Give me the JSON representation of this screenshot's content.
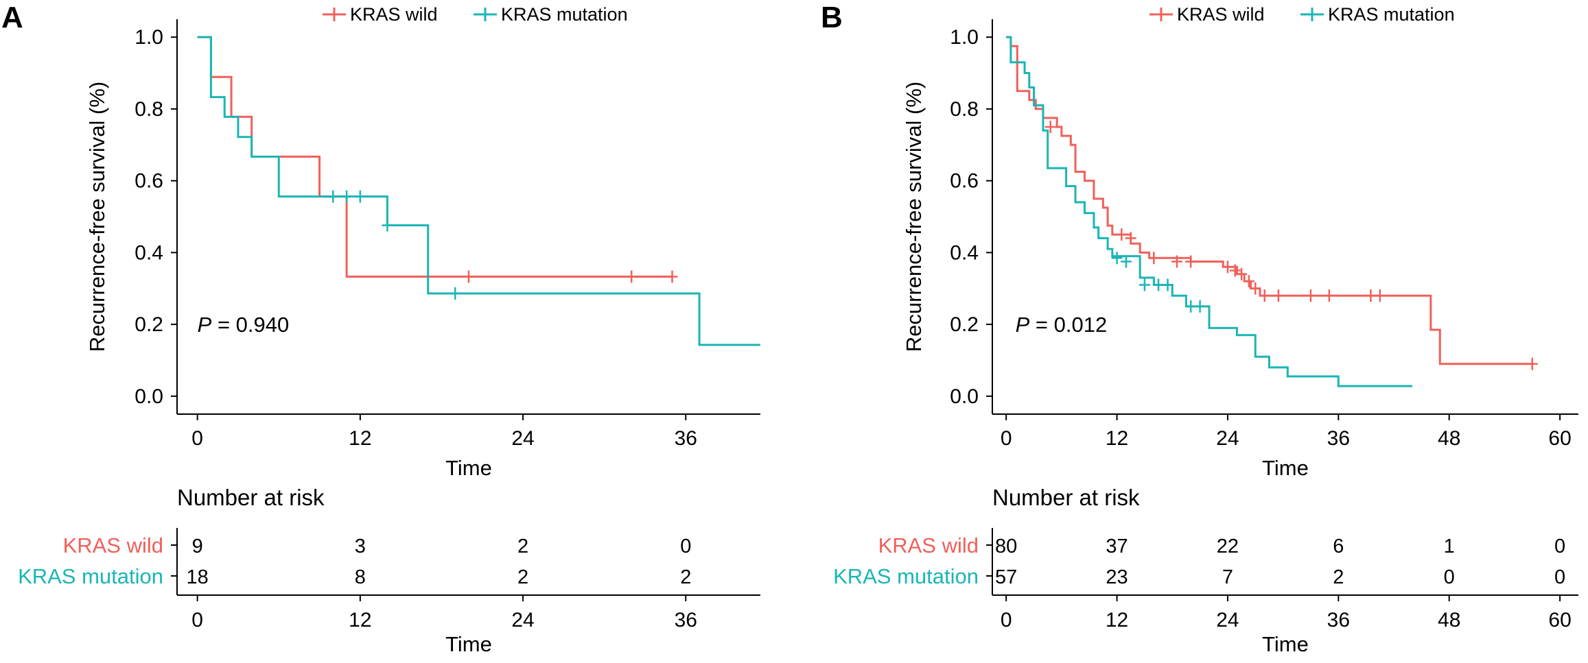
{
  "chart_data": [
    {
      "panel_label": "A",
      "type": "line",
      "subtype": "kaplan-meier",
      "legend": [
        "KRAS wild",
        "KRAS mutation"
      ],
      "xlabel": "Time",
      "ylabel": "Recurrence-free survival (%)",
      "xlim": [
        -1.5,
        41.5
      ],
      "ylim": [
        -0.05,
        1.05
      ],
      "xticks": [
        0,
        12,
        24,
        36
      ],
      "yticks": [
        0.0,
        0.2,
        0.4,
        0.6,
        0.8,
        1.0
      ],
      "ytick_labels": [
        "0.0",
        "0.2",
        "0.4",
        "0.6",
        "0.8",
        "1.0"
      ],
      "pvalue_label": "P",
      "pvalue_text": " = 0.940",
      "pvalue_at": [
        0,
        0.2
      ],
      "series": [
        {
          "name": "KRAS wild",
          "color": "#f0605a",
          "end_x": 35,
          "steps": [
            [
              0,
              1.0
            ],
            [
              1,
              0.889
            ],
            [
              2.5,
              0.778
            ],
            [
              4,
              0.667
            ],
            [
              9,
              0.556
            ],
            [
              11,
              0.333
            ]
          ],
          "censor": [
            [
              20,
              0.333
            ],
            [
              32,
              0.333
            ],
            [
              35,
              0.333
            ]
          ]
        },
        {
          "name": "KRAS mutation",
          "color": "#1ab5b5",
          "end_x": 41.5,
          "steps": [
            [
              0,
              1.0
            ],
            [
              1,
              0.833
            ],
            [
              2,
              0.778
            ],
            [
              3,
              0.722
            ],
            [
              4,
              0.667
            ],
            [
              6,
              0.556
            ],
            [
              14,
              0.476
            ],
            [
              17,
              0.286
            ],
            [
              37,
              0.143
            ]
          ],
          "censor": [
            [
              10,
              0.556
            ],
            [
              11,
              0.556
            ],
            [
              12,
              0.556
            ],
            [
              14,
              0.476
            ],
            [
              19,
              0.286
            ]
          ]
        }
      ],
      "risk_table": {
        "title": "Number at risk",
        "times": [
          0,
          12,
          24,
          36
        ],
        "rows": [
          {
            "label": "KRAS wild",
            "values": [
              9,
              3,
              2,
              0
            ]
          },
          {
            "label": "KRAS mutation",
            "values": [
              18,
              8,
              2,
              2
            ]
          }
        ],
        "xlabel": "Time"
      }
    },
    {
      "panel_label": "B",
      "type": "line",
      "subtype": "kaplan-meier",
      "legend": [
        "KRAS wild",
        "KRAS mutation"
      ],
      "xlabel": "Time",
      "ylabel": "Recurrence-free survival (%)",
      "xlim": [
        -1.5,
        62
      ],
      "ylim": [
        -0.05,
        1.05
      ],
      "xticks": [
        0,
        12,
        24,
        36,
        48,
        60
      ],
      "yticks": [
        0.0,
        0.2,
        0.4,
        0.6,
        0.8,
        1.0
      ],
      "ytick_labels": [
        "0.0",
        "0.2",
        "0.4",
        "0.6",
        "0.8",
        "1.0"
      ],
      "pvalue_label": "P",
      "pvalue_text": " = 0.012",
      "pvalue_at": [
        1,
        0.2
      ],
      "series": [
        {
          "name": "KRAS wild",
          "color": "#f0605a",
          "end_x": 57,
          "steps": [
            [
              0,
              1.0
            ],
            [
              0.5,
              0.975
            ],
            [
              1.2,
              0.85
            ],
            [
              2.5,
              0.825
            ],
            [
              3.2,
              0.8
            ],
            [
              4,
              0.775
            ],
            [
              5.5,
              0.75
            ],
            [
              6,
              0.725
            ],
            [
              7,
              0.7
            ],
            [
              7.5,
              0.625
            ],
            [
              8.5,
              0.6
            ],
            [
              9.5,
              0.55
            ],
            [
              10.5,
              0.525
            ],
            [
              11,
              0.475
            ],
            [
              11.5,
              0.45
            ],
            [
              13.5,
              0.425
            ],
            [
              14.5,
              0.4
            ],
            [
              15.5,
              0.385
            ],
            [
              20,
              0.375
            ],
            [
              23.5,
              0.36
            ],
            [
              25,
              0.34
            ],
            [
              25.8,
              0.32
            ],
            [
              26.5,
              0.3
            ],
            [
              27.5,
              0.28
            ],
            [
              46,
              0.185
            ],
            [
              47,
              0.09
            ]
          ],
          "censor": [
            [
              4.8,
              0.75
            ],
            [
              12.5,
              0.45
            ],
            [
              13.5,
              0.44
            ],
            [
              16,
              0.385
            ],
            [
              18.5,
              0.375
            ],
            [
              20,
              0.375
            ],
            [
              24,
              0.36
            ],
            [
              24.8,
              0.35
            ],
            [
              25.5,
              0.34
            ],
            [
              26.3,
              0.32
            ],
            [
              27,
              0.3
            ],
            [
              28,
              0.28
            ],
            [
              29.5,
              0.28
            ],
            [
              33,
              0.28
            ],
            [
              35,
              0.28
            ],
            [
              39.5,
              0.28
            ],
            [
              40.5,
              0.28
            ],
            [
              57,
              0.09
            ]
          ]
        },
        {
          "name": "KRAS mutation",
          "color": "#1ab5b5",
          "end_x": 44,
          "steps": [
            [
              0,
              1.0
            ],
            [
              0.5,
              0.93
            ],
            [
              2,
              0.9
            ],
            [
              2.5,
              0.86
            ],
            [
              3,
              0.81
            ],
            [
              4,
              0.74
            ],
            [
              4.5,
              0.635
            ],
            [
              6.5,
              0.585
            ],
            [
              7.5,
              0.54
            ],
            [
              8.5,
              0.51
            ],
            [
              9.5,
              0.47
            ],
            [
              10,
              0.44
            ],
            [
              11,
              0.41
            ],
            [
              11.5,
              0.39
            ],
            [
              14.5,
              0.33
            ],
            [
              16,
              0.31
            ],
            [
              18,
              0.28
            ],
            [
              19.5,
              0.25
            ],
            [
              22,
              0.19
            ],
            [
              25,
              0.17
            ],
            [
              27,
              0.11
            ],
            [
              28.5,
              0.08
            ],
            [
              30.5,
              0.055
            ],
            [
              36,
              0.028
            ]
          ],
          "censor": [
            [
              12,
              0.385
            ],
            [
              13,
              0.375
            ],
            [
              15,
              0.31
            ],
            [
              16.5,
              0.31
            ],
            [
              17.5,
              0.31
            ],
            [
              20,
              0.25
            ],
            [
              21,
              0.25
            ]
          ]
        }
      ],
      "risk_table": {
        "title": "Number at risk",
        "times": [
          0,
          12,
          24,
          36,
          48,
          60
        ],
        "rows": [
          {
            "label": "KRAS wild",
            "values": [
              80,
              37,
              22,
              6,
              1,
              0
            ]
          },
          {
            "label": "KRAS mutation",
            "values": [
              57,
              23,
              7,
              2,
              0,
              0
            ]
          }
        ],
        "xlabel": "Time"
      }
    }
  ]
}
